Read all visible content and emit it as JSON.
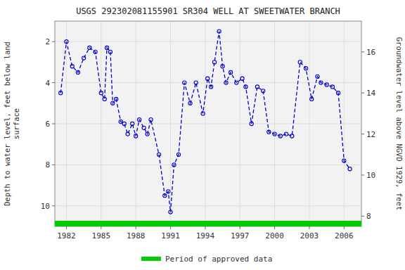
{
  "chart_data": {
    "type": "line",
    "title": "USGS 292302081155901 SR304 WELL AT SWEETWATER BRANCH",
    "ylabel": "Depth to water level, feet below land\nsurface",
    "y2label": "Groundwater level above NGVD 1929, feet",
    "x": [
      1981.5,
      1982.0,
      1982.5,
      1983.0,
      1983.5,
      1984.0,
      1984.5,
      1985.0,
      1985.3,
      1985.5,
      1985.8,
      1986.0,
      1986.3,
      1986.7,
      1987.0,
      1987.3,
      1987.7,
      1988.0,
      1988.3,
      1988.7,
      1989.0,
      1989.3,
      1990.0,
      1990.5,
      1990.8,
      1991.0,
      1991.3,
      1991.7,
      1992.2,
      1992.7,
      1993.2,
      1993.8,
      1994.2,
      1994.5,
      1994.8,
      1995.2,
      1995.5,
      1995.8,
      1996.2,
      1996.7,
      1997.2,
      1997.5,
      1998.0,
      1998.5,
      1999.0,
      1999.5,
      2000.0,
      2000.5,
      2001.0,
      2001.5,
      2002.2,
      2002.7,
      2003.2,
      2003.7,
      2004.0,
      2004.5,
      2005.0,
      2005.5,
      2006.0,
      2006.5
    ],
    "series": [
      {
        "color": "#0000cc",
        "marker": "circle",
        "line_style": "dashed",
        "values": [
          4.5,
          2.0,
          3.2,
          3.5,
          2.8,
          2.3,
          2.5,
          4.5,
          4.8,
          2.3,
          2.5,
          5.0,
          4.8,
          5.9,
          6.0,
          6.5,
          6.0,
          6.6,
          5.8,
          6.2,
          6.5,
          5.8,
          7.5,
          9.5,
          9.3,
          10.3,
          8.0,
          7.5,
          4.0,
          5.0,
          4.0,
          5.5,
          3.8,
          4.2,
          3.0,
          1.5,
          3.2,
          4.0,
          3.5,
          4.0,
          3.8,
          4.2,
          6.0,
          4.2,
          4.4,
          6.4,
          6.5,
          6.6,
          6.5,
          6.6,
          3.0,
          3.3,
          4.8,
          3.7,
          4.0,
          4.1,
          4.2,
          4.5,
          7.8,
          8.2
        ]
      },
      {
        "name": "Period of approved data",
        "color": "#00cc00",
        "type": "line",
        "line_style": "solid",
        "x": [
          1981.0,
          2007.5
        ],
        "values": [
          10.88,
          10.88
        ]
      }
    ],
    "xlim": [
      1981.0,
      2007.5
    ],
    "ylim": [
      11.0,
      1.0
    ],
    "y2lim": [
      7.5,
      17.5
    ],
    "xticks": [
      1982,
      1985,
      1988,
      1991,
      1994,
      1997,
      2000,
      2003,
      2006
    ],
    "yticks": [
      2.0,
      4.0,
      6.0,
      8.0,
      10.0
    ],
    "y2ticks": [
      8.0,
      10.0,
      12.0,
      14.0,
      16.0
    ],
    "grid": true,
    "legend": "bottom"
  }
}
